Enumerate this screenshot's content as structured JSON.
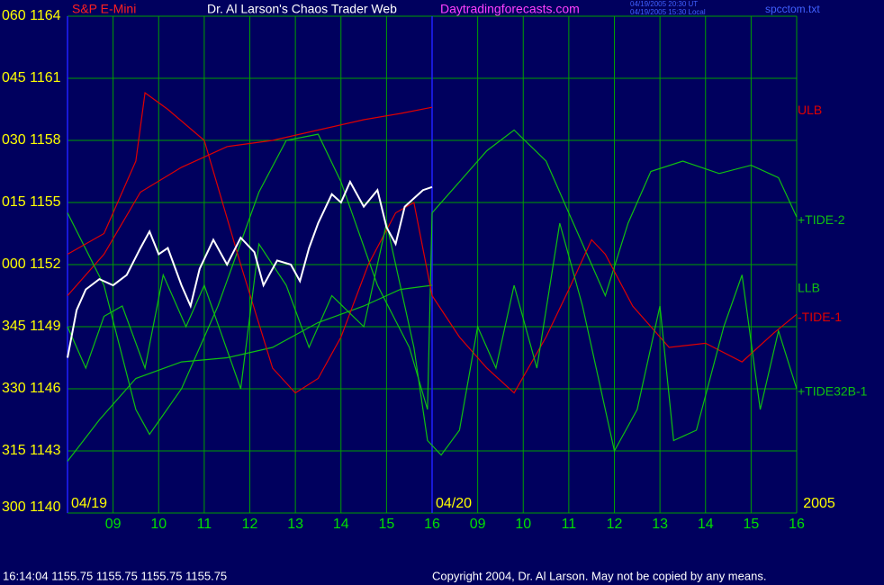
{
  "chart_data": {
    "type": "line",
    "title": "Dr. Al Larson's Chaos Trader Web",
    "subtitle": "S&P E-Mini",
    "website": "Daytradingforecasts.com",
    "timestamps": [
      "04/19/2005 20:30 UT",
      "04/19/2005 15:30 Local"
    ],
    "file": "spcctom.txt",
    "status": "16:14:04  1155.75 1155.75 1155.75 1155.75",
    "copyright": "Copyright 2004, Dr. Al Larson. May not be copied by any means.",
    "xlim": [
      0,
      16
    ],
    "ylim": [
      1140,
      1164
    ],
    "grid": true,
    "grid_color": "#00a000",
    "boundary_color": "#2020ff",
    "tick_color": "#ffff00",
    "xtick_color": "#00e000",
    "xticks": [
      {
        "value": 1,
        "label": "09"
      },
      {
        "value": 2,
        "label": "10"
      },
      {
        "value": 3,
        "label": "11"
      },
      {
        "value": 4,
        "label": "12"
      },
      {
        "value": 5,
        "label": "13"
      },
      {
        "value": 6,
        "label": "14"
      },
      {
        "value": 7,
        "label": "15"
      },
      {
        "value": 8,
        "label": "16"
      },
      {
        "value": 9,
        "label": "09"
      },
      {
        "value": 10,
        "label": "10"
      },
      {
        "value": 11,
        "label": "11"
      },
      {
        "value": 12,
        "label": "12"
      },
      {
        "value": 13,
        "label": "13"
      },
      {
        "value": 14,
        "label": "14"
      },
      {
        "value": 15,
        "label": "15"
      },
      {
        "value": 16,
        "label": "16"
      }
    ],
    "yticks": [
      {
        "value": 1140,
        "label": "300 1140"
      },
      {
        "value": 1143,
        "label": "315 1143"
      },
      {
        "value": 1146,
        "label": "330 1146"
      },
      {
        "value": 1149,
        "label": "345 1149"
      },
      {
        "value": 1152,
        "label": "000 1152"
      },
      {
        "value": 1155,
        "label": "015 1155"
      },
      {
        "value": 1158,
        "label": "030 1158"
      },
      {
        "value": 1161,
        "label": "045 1161"
      },
      {
        "value": 1164,
        "label": "060 1164"
      }
    ],
    "date_labels": [
      {
        "text": "04/19",
        "x": 0
      },
      {
        "text": "04/20",
        "x": 8
      },
      {
        "text": "2005",
        "x": 16
      }
    ],
    "series": [
      {
        "name": "ULB",
        "color": "#e00000",
        "x": [
          0,
          0.8,
          1.6,
          2.5,
          3.5,
          4.5,
          5.5,
          6.5,
          7.3,
          8.0
        ],
        "values": [
          1150.5,
          1152.5,
          1155.5,
          1156.7,
          1157.7,
          1158,
          1158.5,
          1159,
          1159.3,
          1159.6
        ]
      },
      {
        "name": "+TIDE-2",
        "color": "#10c010",
        "x": [
          0,
          0.8,
          1.5,
          1.8,
          2.5,
          3.3,
          4.2,
          4.8,
          5.5,
          6.0,
          6.8,
          7.5,
          7.9,
          8.0,
          8.6,
          9.2,
          9.8,
          10.5,
          11.1,
          11.5,
          11.8,
          12.3,
          12.8,
          13.5,
          14.3,
          15.0,
          15.6,
          16.0
        ],
        "values": [
          1154.5,
          1151,
          1145,
          1143.8,
          1146,
          1150,
          1155.5,
          1158,
          1158.3,
          1156,
          1151,
          1148,
          1145,
          1154.5,
          1156,
          1157.5,
          1158.5,
          1157,
          1154,
          1152,
          1150.5,
          1154,
          1156.5,
          1157,
          1156.4,
          1156.8,
          1156.2,
          1154.3
        ]
      },
      {
        "name": "LLB",
        "color": "#10c010",
        "x": [
          0,
          0.7,
          1.5,
          2.5,
          3.5,
          4.5,
          5.5,
          6.5,
          7.3,
          8.0
        ],
        "values": [
          1142.5,
          1144.5,
          1146.5,
          1147.3,
          1147.5,
          1148,
          1149.2,
          1150,
          1150.8,
          1151
        ]
      },
      {
        "name": "-TIDE-1",
        "color": "#e00000",
        "x": [
          0,
          0.8,
          1.5,
          1.7,
          2.2,
          3.0,
          3.8,
          4.5,
          5.0,
          5.5,
          6.0,
          6.6,
          7.2,
          7.6,
          8.0,
          8.6,
          9.2,
          9.8,
          10.5,
          11.0,
          11.5,
          11.8,
          12.4,
          13.2,
          14.0,
          14.8,
          15.5,
          16.0
        ],
        "values": [
          1152.5,
          1153.5,
          1157,
          1160.3,
          1159.5,
          1158,
          1152,
          1147,
          1145.8,
          1146.5,
          1148.5,
          1152,
          1154.5,
          1155,
          1150.5,
          1148.5,
          1147,
          1145.8,
          1148.5,
          1150.8,
          1153.2,
          1152.5,
          1150,
          1148,
          1148.2,
          1147.3,
          1148.7,
          1149.6
        ]
      },
      {
        "name": "+TIDE32B-1",
        "color": "#10c010",
        "x": [
          0,
          0.4,
          0.8,
          1.2,
          1.7,
          2.1,
          2.6,
          3.0,
          3.8,
          4.2,
          4.8,
          5.3,
          5.8,
          6.5,
          7.0,
          7.6,
          7.9,
          8.2,
          8.6,
          9.0,
          9.4,
          9.8,
          10.3,
          10.8,
          11.3,
          12.0,
          12.5,
          13.0,
          13.3,
          13.8,
          14.4,
          14.8,
          15.2,
          15.6,
          16.0
        ],
        "values": [
          1149,
          1147,
          1149.5,
          1150,
          1147,
          1151.5,
          1149,
          1151,
          1146,
          1153,
          1151,
          1148,
          1150.5,
          1149,
          1154,
          1148,
          1143.5,
          1142.8,
          1144,
          1149,
          1147,
          1151,
          1147,
          1154,
          1150,
          1143,
          1145,
          1150,
          1143.5,
          1144,
          1149,
          1151.5,
          1145,
          1148.8,
          1146
        ]
      },
      {
        "color": "#ffffff",
        "x": [
          0,
          0.2,
          0.4,
          0.7,
          1.0,
          1.3,
          1.6,
          1.8,
          2.0,
          2.2,
          2.5,
          2.7,
          2.9,
          3.2,
          3.5,
          3.8,
          4.1,
          4.3,
          4.6,
          4.9,
          5.1,
          5.3,
          5.5,
          5.8,
          6.0,
          6.2,
          6.5,
          6.8,
          7.0,
          7.2,
          7.4,
          7.6,
          7.8,
          8.0
        ],
        "values": [
          1147.5,
          1149.8,
          1150.8,
          1151.3,
          1151.0,
          1151.5,
          1152.8,
          1153.6,
          1152.5,
          1152.8,
          1151.0,
          1150.0,
          1151.8,
          1153.2,
          1152.0,
          1153.3,
          1152.6,
          1151.0,
          1152.2,
          1152.0,
          1151.2,
          1152.8,
          1154.0,
          1155.4,
          1155.0,
          1156.0,
          1154.8,
          1155.6,
          1153.8,
          1153.0,
          1154.8,
          1155.2,
          1155.6,
          1155.75
        ]
      }
    ]
  }
}
